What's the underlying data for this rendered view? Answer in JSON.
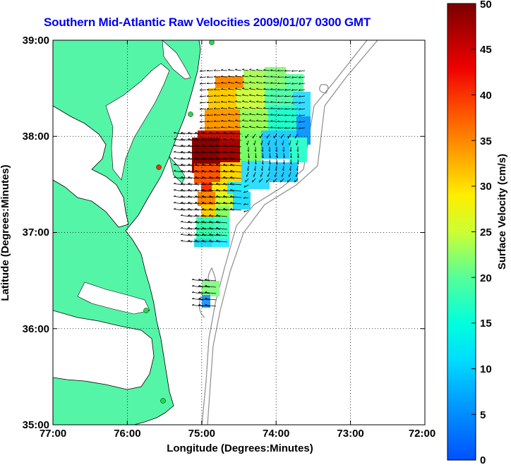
{
  "title": "Southern Mid-Atlantic Raw Velocities 2009/01/07 0300 GMT",
  "chart_data": {
    "type": "heatmap",
    "xlabel": "Longitude (Degrees:Minutes)",
    "ylabel": "Latitude (Degrees:Minutes)",
    "x_ticks": [
      "77:00",
      "76:00",
      "75:00",
      "74:00",
      "73:00",
      "72:00"
    ],
    "y_ticks": [
      "39:00",
      "38:00",
      "37:00",
      "36:00",
      "35:00"
    ],
    "xlim": [
      -77,
      -72
    ],
    "ylim": [
      35,
      39
    ],
    "grid": true,
    "colorbar": {
      "label": "Surface Velocity (cm/s)",
      "ticks": [
        "50",
        "45",
        "40",
        "35",
        "30",
        "25",
        "20",
        "15",
        "10",
        "5",
        "0"
      ],
      "range": [
        0,
        50
      ]
    }
  },
  "colors": {
    "land": "#55f5a8",
    "title": "#0000ee",
    "bathymetry": "#888888"
  }
}
